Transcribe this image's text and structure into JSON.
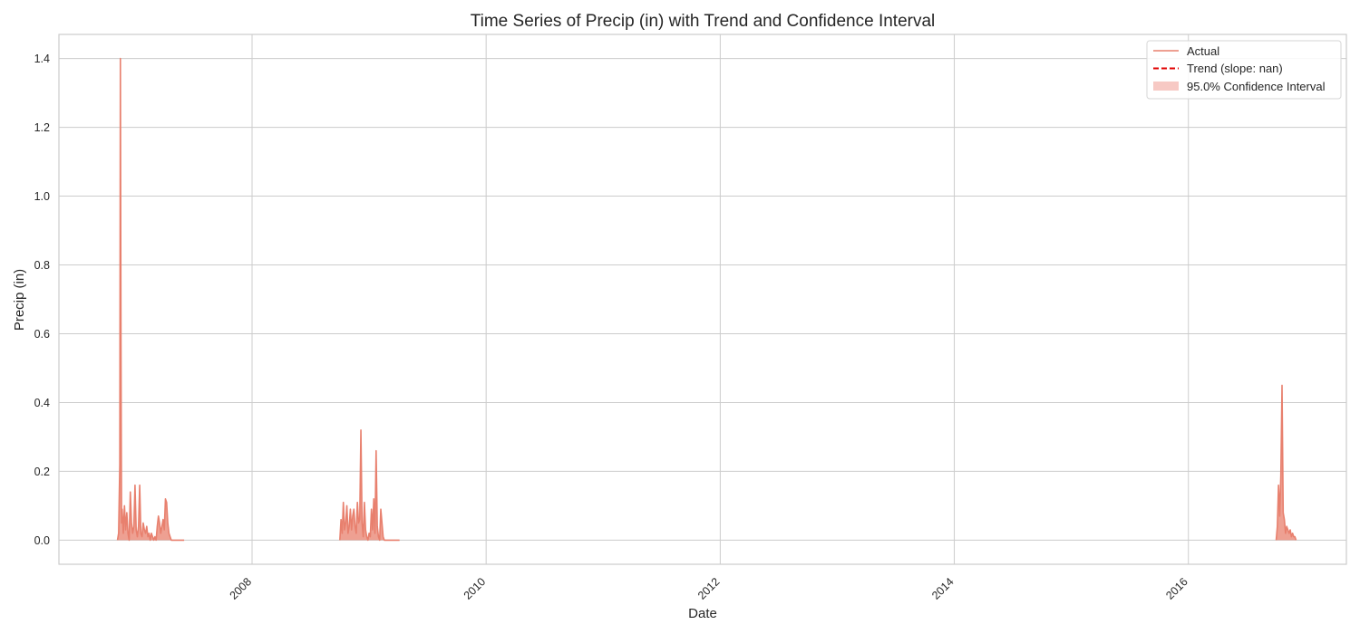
{
  "chart_data": {
    "type": "line",
    "title": "Time Series of Precip (in) with Trend and Confidence Interval",
    "xlabel": "Date",
    "ylabel": "Precip (in)",
    "xlim": [
      2006.35,
      2017.35
    ],
    "ylim": [
      -0.07,
      1.47
    ],
    "x_ticks": [
      2008,
      2010,
      2012,
      2014,
      2016
    ],
    "x_tick_labels": [
      "2008",
      "2010",
      "2012",
      "2014",
      "2016"
    ],
    "y_ticks": [
      0.0,
      0.2,
      0.4,
      0.6,
      0.8,
      1.0,
      1.2,
      1.4
    ],
    "y_tick_labels": [
      "0.0",
      "0.2",
      "0.4",
      "0.6",
      "0.8",
      "1.0",
      "1.2",
      "1.4"
    ],
    "grid": true,
    "legend_position": "top-right",
    "legend": [
      {
        "label": "Actual",
        "style": "line",
        "color": "#e8806e"
      },
      {
        "label": "Trend (slope: nan)",
        "style": "dashed",
        "color": "#e00000"
      },
      {
        "label": "95.0% Confidence Interval",
        "style": "patch",
        "color": "#f7c9c4"
      }
    ],
    "series": [
      {
        "name": "Actual",
        "color": "#e8806e",
        "segments": [
          {
            "x": [
              2006.85,
              2006.86,
              2006.87,
              2006.875,
              2006.88,
              2006.885,
              2006.89,
              2006.9,
              2006.91,
              2006.92,
              2006.93,
              2006.94,
              2006.95,
              2006.96,
              2006.97,
              2006.98,
              2006.99,
              2007.0,
              2007.01,
              2007.02,
              2007.03,
              2007.04,
              2007.05,
              2007.06,
              2007.07,
              2007.08,
              2007.09,
              2007.1,
              2007.11,
              2007.12,
              2007.13,
              2007.14,
              2007.15,
              2007.16,
              2007.17,
              2007.18,
              2007.19,
              2007.2,
              2007.21,
              2007.22,
              2007.23,
              2007.24,
              2007.25,
              2007.26,
              2007.27,
              2007.28,
              2007.29,
              2007.3,
              2007.31,
              2007.32,
              2007.33,
              2007.34,
              2007.35,
              2007.36,
              2007.37,
              2007.38,
              2007.39,
              2007.4,
              2007.41,
              2007.42
            ],
            "y": [
              0.0,
              0.02,
              0.22,
              1.4,
              0.6,
              0.05,
              0.09,
              0.02,
              0.1,
              0.03,
              0.08,
              0.02,
              0.0,
              0.14,
              0.05,
              0.02,
              0.04,
              0.16,
              0.03,
              0.01,
              0.04,
              0.16,
              0.02,
              0.01,
              0.05,
              0.03,
              0.02,
              0.04,
              0.01,
              0.02,
              0.0,
              0.02,
              0.01,
              0.0,
              0.01,
              0.0,
              0.04,
              0.07,
              0.05,
              0.02,
              0.04,
              0.06,
              0.03,
              0.12,
              0.11,
              0.05,
              0.02,
              0.01,
              0.0,
              0.0,
              0.0,
              0.0,
              0.0,
              0.0,
              0.0,
              0.0,
              0.0,
              0.0,
              0.0,
              0.0
            ]
          },
          {
            "x": [
              2008.75,
              2008.76,
              2008.77,
              2008.78,
              2008.79,
              2008.8,
              2008.81,
              2008.82,
              2008.83,
              2008.84,
              2008.85,
              2008.86,
              2008.87,
              2008.88,
              2008.89,
              2008.9,
              2008.91,
              2008.92,
              2008.93,
              2008.94,
              2008.95,
              2008.96,
              2008.97,
              2008.98,
              2008.99,
              2009.0,
              2009.01,
              2009.02,
              2009.03,
              2009.04,
              2009.05,
              2009.06,
              2009.07,
              2009.08,
              2009.09,
              2009.1,
              2009.11,
              2009.12,
              2009.13,
              2009.14,
              2009.15,
              2009.16,
              2009.17,
              2009.18,
              2009.19,
              2009.2,
              2009.21,
              2009.22,
              2009.23,
              2009.24,
              2009.25,
              2009.26
            ],
            "y": [
              0.0,
              0.06,
              0.02,
              0.11,
              0.03,
              0.05,
              0.1,
              0.02,
              0.04,
              0.09,
              0.03,
              0.07,
              0.09,
              0.04,
              0.02,
              0.11,
              0.05,
              0.06,
              0.32,
              0.05,
              0.01,
              0.11,
              0.03,
              0.01,
              0.0,
              0.02,
              0.01,
              0.09,
              0.03,
              0.12,
              0.02,
              0.26,
              0.04,
              0.01,
              0.0,
              0.09,
              0.05,
              0.01,
              0.0,
              0.0,
              0.0,
              0.0,
              0.0,
              0.0,
              0.0,
              0.0,
              0.0,
              0.0,
              0.0,
              0.0,
              0.0,
              0.0
            ]
          },
          {
            "x": [
              2016.75,
              2016.76,
              2016.77,
              2016.78,
              2016.79,
              2016.8,
              2016.81,
              2016.82,
              2016.83,
              2016.84,
              2016.85,
              2016.86,
              2016.87,
              2016.88,
              2016.89,
              2016.9,
              2016.91,
              2016.92
            ],
            "y": [
              0.0,
              0.04,
              0.16,
              0.07,
              0.19,
              0.45,
              0.08,
              0.06,
              0.02,
              0.04,
              0.03,
              0.02,
              0.03,
              0.01,
              0.02,
              0.01,
              0.01,
              0.0
            ]
          }
        ]
      }
    ]
  }
}
